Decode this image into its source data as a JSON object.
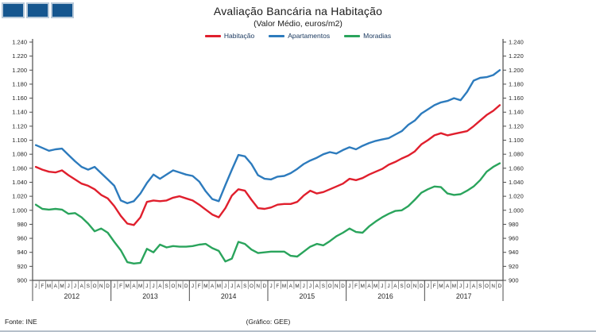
{
  "header": {
    "title": "Avaliação Bancária na Habitação",
    "subtitle": "(Valor Médio, euros/m2)"
  },
  "legend": {
    "items": [
      {
        "label": "Habitação",
        "color": "#e01f2d"
      },
      {
        "label": "Apartamentos",
        "color": "#2d7bbd"
      },
      {
        "label": "Moradias",
        "color": "#2aa45c"
      }
    ]
  },
  "footer": {
    "source": "Fonte: INE",
    "credit": "(Gráfico: GEE)"
  },
  "icons": {
    "logo_squares": "three-blue-squares-logo"
  },
  "chart_data": {
    "type": "line",
    "title": "Avaliação Bancária na Habitação",
    "subtitle": "(Valor Médio, euros/m2)",
    "unit": "euros/m2",
    "grid": false,
    "legend_position": "top",
    "x_month_letters": [
      "J",
      "F",
      "M",
      "A",
      "M",
      "J",
      "J",
      "A",
      "S",
      "O",
      "N",
      "D"
    ],
    "years": [
      "2012",
      "2013",
      "2014",
      "2015",
      "2016",
      "2017"
    ],
    "ylim": [
      900,
      1240
    ],
    "y_tick_values": [
      1240,
      1220,
      1200,
      1180,
      1160,
      1140,
      1120,
      1100,
      1080,
      1060,
      1040,
      1020,
      1000,
      980,
      960,
      940,
      920,
      900
    ],
    "y_tick_labels": [
      "1.240",
      "1.220",
      "1.200",
      "1.180",
      "1.160",
      "1.140",
      "1.120",
      "1.100",
      "1.080",
      "1.060",
      "1.040",
      "1.020",
      "1.000",
      "980",
      "960",
      "940",
      "920",
      "900"
    ],
    "series": [
      {
        "name": "Habitação",
        "color": "#e01f2d",
        "values": [
          1062,
          1058,
          1055,
          1054,
          1057,
          1050,
          1044,
          1038,
          1035,
          1030,
          1022,
          1017,
          1006,
          992,
          981,
          979,
          990,
          1012,
          1014,
          1013,
          1014,
          1018,
          1020,
          1017,
          1014,
          1008,
          1001,
          994,
          990,
          1003,
          1021,
          1030,
          1028,
          1015,
          1003,
          1002,
          1004,
          1008,
          1009,
          1009,
          1012,
          1021,
          1028,
          1024,
          1026,
          1030,
          1034,
          1038,
          1045,
          1043,
          1046,
          1051,
          1055,
          1059,
          1065,
          1069,
          1074,
          1078,
          1084,
          1094,
          1100,
          1107,
          1110,
          1107,
          1109,
          1111,
          1113,
          1120,
          1128,
          1136,
          1142,
          1150
        ]
      },
      {
        "name": "Apartamentos",
        "color": "#2d7bbd",
        "values": [
          1093,
          1089,
          1085,
          1087,
          1088,
          1079,
          1070,
          1062,
          1058,
          1062,
          1053,
          1044,
          1035,
          1014,
          1010,
          1013,
          1024,
          1039,
          1051,
          1045,
          1051,
          1057,
          1054,
          1051,
          1049,
          1041,
          1027,
          1016,
          1013,
          1036,
          1058,
          1079,
          1077,
          1066,
          1050,
          1045,
          1044,
          1048,
          1049,
          1053,
          1059,
          1066,
          1071,
          1075,
          1080,
          1083,
          1081,
          1086,
          1090,
          1087,
          1092,
          1096,
          1099,
          1101,
          1103,
          1108,
          1113,
          1122,
          1128,
          1138,
          1144,
          1150,
          1154,
          1156,
          1160,
          1157,
          1169,
          1185,
          1189,
          1190,
          1193,
          1200
        ]
      },
      {
        "name": "Moradias",
        "color": "#2aa45c",
        "values": [
          1008,
          1002,
          1001,
          1002,
          1001,
          995,
          996,
          990,
          981,
          970,
          974,
          968,
          955,
          943,
          926,
          924,
          925,
          945,
          940,
          951,
          947,
          949,
          948,
          948,
          949,
          951,
          952,
          946,
          942,
          927,
          931,
          955,
          952,
          944,
          939,
          940,
          941,
          941,
          941,
          935,
          934,
          941,
          948,
          952,
          950,
          956,
          963,
          968,
          974,
          969,
          968,
          977,
          984,
          990,
          995,
          999,
          1000,
          1006,
          1015,
          1025,
          1030,
          1034,
          1033,
          1024,
          1022,
          1023,
          1028,
          1034,
          1043,
          1055,
          1062,
          1067
        ]
      }
    ]
  }
}
